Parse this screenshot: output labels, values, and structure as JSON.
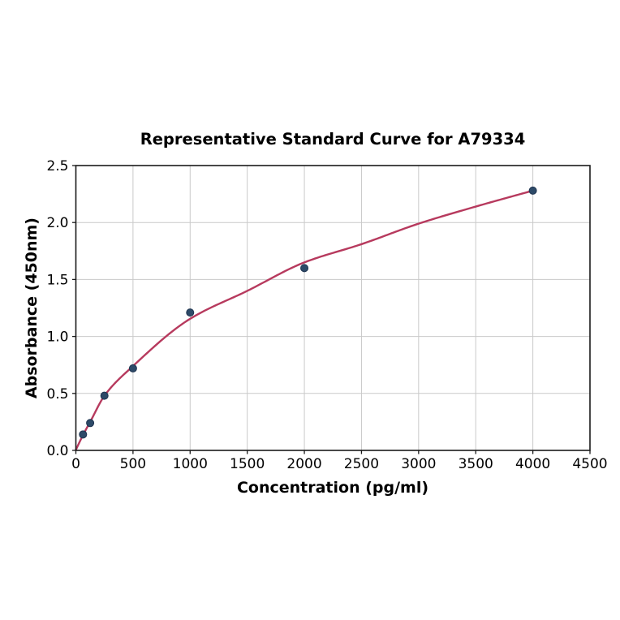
{
  "chart_data": {
    "type": "scatter",
    "title": "Representative Standard Curve for A79334",
    "xlabel": "Concentration (pg/ml)",
    "ylabel": "Absorbance (450nm)",
    "xlim": [
      0,
      4500
    ],
    "ylim": [
      0,
      2.5
    ],
    "grid": true,
    "legend": "none",
    "xticks": {
      "values": [
        0,
        500,
        1000,
        1500,
        2000,
        2500,
        3000,
        3500,
        4000,
        4500
      ],
      "labels": [
        "0",
        "500",
        "1000",
        "1500",
        "2000",
        "2500",
        "3000",
        "3500",
        "4000",
        "4500"
      ]
    },
    "yticks": {
      "values": [
        0,
        0.5,
        1.0,
        1.5,
        2.0,
        2.5
      ],
      "labels": [
        "0.0",
        "0.5",
        "1.0",
        "1.5",
        "2.0",
        "2.5"
      ]
    },
    "series": [
      {
        "name": "standard-points",
        "type": "scatter",
        "x": [
          62.5,
          125,
          250,
          500,
          1000,
          2000,
          4000
        ],
        "y": [
          0.14,
          0.24,
          0.48,
          0.72,
          1.21,
          1.6,
          2.28
        ],
        "marker": "circle",
        "marker_radius": 4.5,
        "marker_fill": "#2d4a68",
        "marker_edge": "#1f3450"
      },
      {
        "name": "fit-curve",
        "type": "line",
        "x": [
          0,
          62.5,
          125,
          250,
          500,
          1000,
          1500,
          2000,
          2500,
          3000,
          3500,
          4000
        ],
        "y": [
          0.005,
          0.135,
          0.25,
          0.48,
          0.74,
          1.155,
          1.4,
          1.65,
          1.81,
          1.99,
          2.14,
          2.28
        ],
        "color": "#b73a5e",
        "width": 2.4,
        "smooth": true
      }
    ],
    "colors": {
      "background": "#ffffff",
      "grid": "#c9c9c9",
      "spine": "#1a1a1a",
      "tick": "#1a1a1a",
      "text": "#000000"
    },
    "tick_font_size": 17,
    "label_font_size": 19
  }
}
